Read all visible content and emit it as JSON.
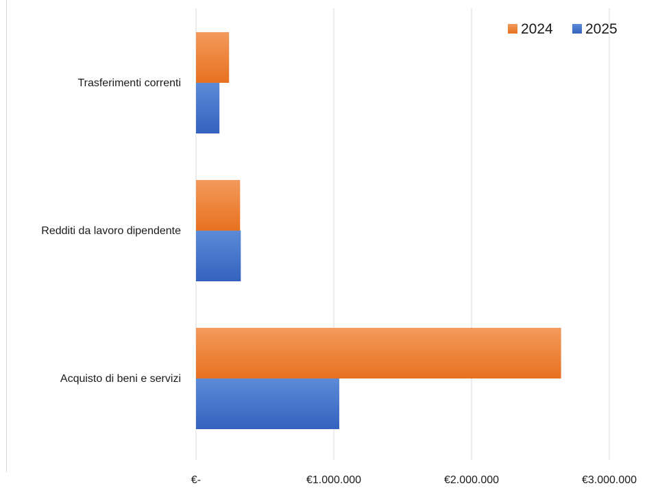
{
  "chart_data": {
    "type": "bar",
    "orientation": "horizontal",
    "categories": [
      "Trasferimenti correnti",
      "Redditi da lavoro dipendente",
      "Acquisto di beni e servizi"
    ],
    "series": [
      {
        "name": "2024",
        "values": [
          240000,
          320000,
          2650000
        ],
        "color": "#ED7D31"
      },
      {
        "name": "2025",
        "values": [
          170000,
          325000,
          1040000
        ],
        "color": "#4472C4"
      }
    ],
    "xlim": [
      0,
      3000000
    ],
    "x_ticks": [
      0,
      1000000,
      2000000,
      3000000
    ],
    "x_tick_labels": [
      "€-",
      "€1.000.000",
      "€2.000.000",
      "€3.000.000"
    ],
    "grid": "vertical",
    "legend_position": "top-right"
  }
}
